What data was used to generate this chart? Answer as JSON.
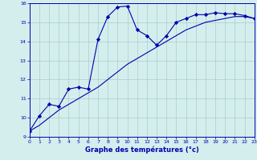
{
  "xlabel": "Graphe des températures (°c)",
  "bg_color": "#d4eeee",
  "line_color": "#0000aa",
  "grid_color": "#aacccc",
  "xlim": [
    0,
    23
  ],
  "ylim": [
    9,
    16
  ],
  "xticks": [
    0,
    1,
    2,
    3,
    4,
    5,
    6,
    7,
    8,
    9,
    10,
    11,
    12,
    13,
    14,
    15,
    16,
    17,
    18,
    19,
    20,
    21,
    22,
    23
  ],
  "yticks": [
    9,
    10,
    11,
    12,
    13,
    14,
    15,
    16
  ],
  "series1_x": [
    0,
    1,
    2,
    3,
    4,
    5,
    6,
    7,
    8,
    9,
    10,
    11,
    12,
    13,
    14,
    15,
    16,
    17,
    18,
    19,
    20,
    21,
    22,
    23
  ],
  "series1_y": [
    9.3,
    10.1,
    10.7,
    10.6,
    11.5,
    11.6,
    11.5,
    14.1,
    15.3,
    15.8,
    15.85,
    14.6,
    14.3,
    13.8,
    14.3,
    15.0,
    15.2,
    15.4,
    15.4,
    15.5,
    15.45,
    15.45,
    15.35,
    15.2
  ],
  "series2_x": [
    0,
    1,
    2,
    3,
    4,
    5,
    6,
    7,
    8,
    9,
    10,
    11,
    12,
    13,
    14,
    15,
    16,
    17,
    18,
    19,
    20,
    21,
    22,
    23
  ],
  "series2_y": [
    9.3,
    9.6,
    10.0,
    10.4,
    10.7,
    11.0,
    11.3,
    11.6,
    12.0,
    12.4,
    12.8,
    13.1,
    13.4,
    13.7,
    14.0,
    14.3,
    14.6,
    14.8,
    15.0,
    15.1,
    15.2,
    15.3,
    15.3,
    15.2
  ]
}
